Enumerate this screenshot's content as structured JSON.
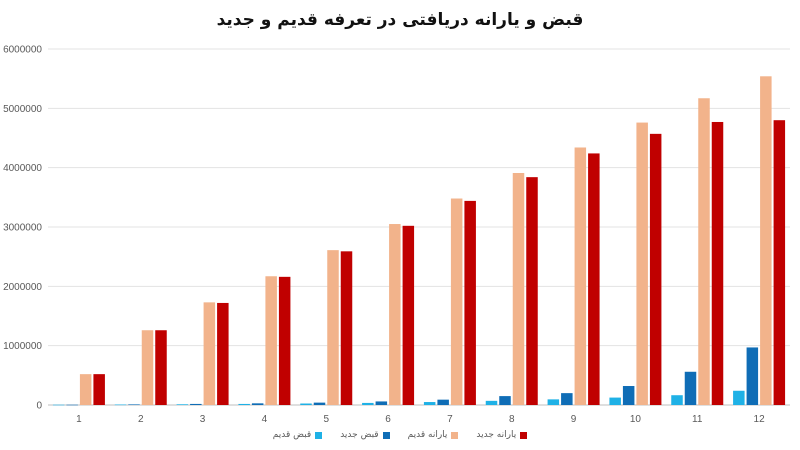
{
  "chart_data": {
    "type": "bar",
    "title": "قبض و یارانه دریافتی در تعرفه قدیم و جدید",
    "xlabel": "",
    "ylabel": "",
    "categories": [
      "1",
      "2",
      "3",
      "4",
      "5",
      "6",
      "7",
      "8",
      "9",
      "10",
      "11",
      "12"
    ],
    "ylim": [
      0,
      6000000
    ],
    "yticks": [
      0,
      1000000,
      2000000,
      3000000,
      4000000,
      5000000,
      6000000
    ],
    "grid": true,
    "legend_position": "bottom",
    "series": [
      {
        "name": "قبض قدیم",
        "color": "#1FB1E6",
        "values": [
          5000,
          8000,
          12000,
          18000,
          25000,
          35000,
          50000,
          70000,
          95000,
          125000,
          165000,
          240000
        ]
      },
      {
        "name": "قبض جدید",
        "color": "#0F6DB6",
        "values": [
          5000,
          10000,
          18000,
          28000,
          40000,
          60000,
          90000,
          150000,
          200000,
          320000,
          560000,
          970000
        ]
      },
      {
        "name": "یارانه قدیم",
        "color": "#F2B38B",
        "values": [
          520000,
          1260000,
          1730000,
          2170000,
          2610000,
          3050000,
          3480000,
          3910000,
          4340000,
          4760000,
          5170000,
          5540000
        ]
      },
      {
        "name": "یارانه جدید",
        "color": "#C00000",
        "values": [
          520000,
          1260000,
          1720000,
          2160000,
          2590000,
          3020000,
          3440000,
          3840000,
          4240000,
          4570000,
          4770000,
          4800000
        ]
      }
    ]
  }
}
